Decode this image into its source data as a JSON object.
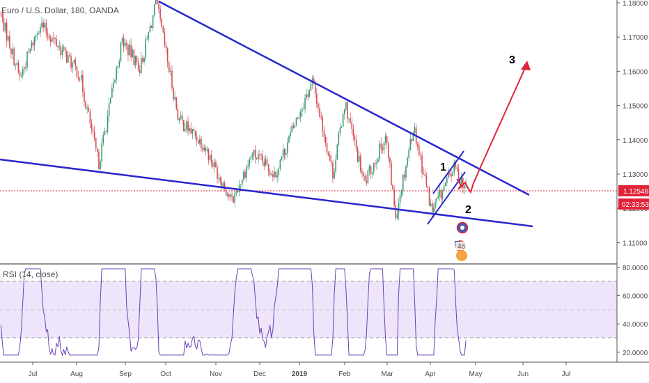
{
  "header": {
    "title": "Euro / U.S. Dollar, 180, OANDA"
  },
  "rsi": {
    "label": "RSI (14, close)",
    "ticks": [
      "80.0000",
      "60.0000",
      "40.0000",
      "20.0000"
    ],
    "band_upper": 70,
    "band_lower": 30,
    "line_color": "#6a3fb5",
    "band_color": "#efe5fb"
  },
  "price": {
    "current_price": "1.12546",
    "countdown": "02:33:53",
    "current_price_color": "#e0233a",
    "ticks": [
      "1.18000",
      "1.17000",
      "1.16000",
      "1.15000",
      "1.14000",
      "1.13000",
      "1.12000",
      "1.11000"
    ]
  },
  "time_axis": {
    "labels": [
      "Jul",
      "Aug",
      "Sep",
      "Oct",
      "Nov",
      "Dec",
      "2019",
      "Feb",
      "Mar",
      "Apr",
      "May",
      "Jun",
      "Jul"
    ]
  },
  "annotations": {
    "wave_1": "1",
    "wave_2": "2",
    "wave_3": "3",
    "event_count": "46",
    "trendline_color": "#2727cf",
    "projection_color": "#e0233a"
  },
  "chart_data": {
    "type": "line",
    "title": "Euro / U.S. Dollar, 180, OANDA",
    "price_ylim": [
      1.105,
      1.182
    ],
    "rsi_ylim": [
      15,
      85
    ],
    "price_series_approx": [
      {
        "x": "2018-06-08",
        "y": 1.177
      },
      {
        "x": "2018-06-22",
        "y": 1.158
      },
      {
        "x": "2018-07-06",
        "y": 1.174
      },
      {
        "x": "2018-07-20",
        "y": 1.167
      },
      {
        "x": "2018-08-03",
        "y": 1.159
      },
      {
        "x": "2018-08-15",
        "y": 1.133
      },
      {
        "x": "2018-08-30",
        "y": 1.169
      },
      {
        "x": "2018-09-12",
        "y": 1.161
      },
      {
        "x": "2018-09-24",
        "y": 1.18
      },
      {
        "x": "2018-10-09",
        "y": 1.146
      },
      {
        "x": "2018-10-24",
        "y": 1.139
      },
      {
        "x": "2018-11-12",
        "y": 1.122
      },
      {
        "x": "2018-11-26",
        "y": 1.136
      },
      {
        "x": "2018-12-13",
        "y": 1.13
      },
      {
        "x": "2018-12-31",
        "y": 1.147
      },
      {
        "x": "2019-01-10",
        "y": 1.157
      },
      {
        "x": "2019-01-24",
        "y": 1.13
      },
      {
        "x": "2019-02-01",
        "y": 1.151
      },
      {
        "x": "2019-02-14",
        "y": 1.127
      },
      {
        "x": "2019-02-28",
        "y": 1.141
      },
      {
        "x": "2019-03-07",
        "y": 1.118
      },
      {
        "x": "2019-03-20",
        "y": 1.144
      },
      {
        "x": "2019-04-02",
        "y": 1.119
      },
      {
        "x": "2019-04-17",
        "y": 1.132
      },
      {
        "x": "2019-04-25",
        "y": 1.1255
      }
    ]
  }
}
